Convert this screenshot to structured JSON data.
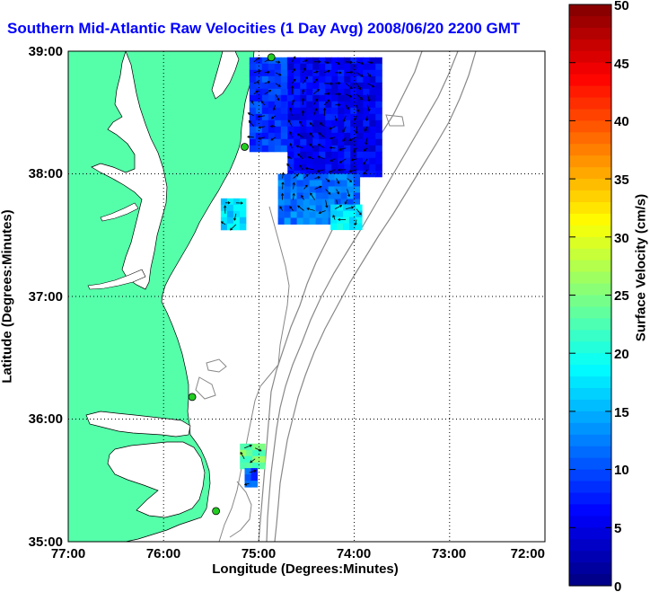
{
  "title": "Southern Mid-Atlantic Raw Velocities (1 Day Avg) 2008/06/20 2200 GMT",
  "axes": {
    "xlabel": "Longitude (Degrees:Minutes)",
    "ylabel": "Latitude (Degrees:Minutes)",
    "xticks": [
      "77:00",
      "76:00",
      "75:00",
      "74:00",
      "73:00",
      "72:00"
    ],
    "yticks": [
      "39:00",
      "38:00",
      "37:00",
      "36:00",
      "35:00"
    ],
    "grid": "dotted"
  },
  "colorbar": {
    "label": "Surface Velocity (cm/s)",
    "min": 0,
    "max": 50,
    "ticks": [
      "50",
      "45",
      "40",
      "35",
      "30",
      "25",
      "20",
      "15",
      "10",
      "5",
      "0"
    ],
    "colormap": "jet"
  },
  "colors": {
    "title": "#0000ff",
    "land": "#55ffaa",
    "ocean": "#ffffff",
    "isobath": "#888888",
    "station": "#22cc22"
  },
  "map_data": {
    "lon_range": [
      -77,
      -72
    ],
    "lat_range": [
      35,
      39
    ],
    "stations": [
      {
        "lon": -74.87,
        "lat": 38.95
      },
      {
        "lon": -75.15,
        "lat": 38.22
      },
      {
        "lon": -75.7,
        "lat": 36.18
      },
      {
        "lon": -75.45,
        "lat": 35.25
      }
    ],
    "velocity_regions": [
      {
        "name": "delaware-shelf",
        "lon": [
          -75.1,
          -74.7
        ],
        "lat": [
          38.2,
          38.95
        ],
        "speed": 9
      },
      {
        "name": "offshore-main",
        "lon": [
          -74.7,
          -73.75
        ],
        "lat": [
          38.0,
          38.95
        ],
        "speed": 6
      },
      {
        "name": "southern-edge",
        "lon": [
          -74.8,
          -73.95
        ],
        "lat": [
          37.6,
          38.0
        ],
        "speed": 12
      },
      {
        "name": "southern-tail",
        "lon": [
          -74.25,
          -73.95
        ],
        "lat": [
          37.55,
          37.75
        ],
        "speed": 18
      },
      {
        "name": "inshore-patch",
        "lon": [
          -75.4,
          -75.2
        ],
        "lat": [
          37.55,
          37.8
        ],
        "speed": 17
      },
      {
        "name": "hatteras-patch",
        "lon": [
          -75.2,
          -75.0
        ],
        "lat": [
          35.6,
          35.8
        ],
        "speed": 24
      },
      {
        "name": "hatteras-south",
        "lon": [
          -75.15,
          -75.05
        ],
        "lat": [
          35.45,
          35.6
        ],
        "speed": 10
      }
    ]
  }
}
